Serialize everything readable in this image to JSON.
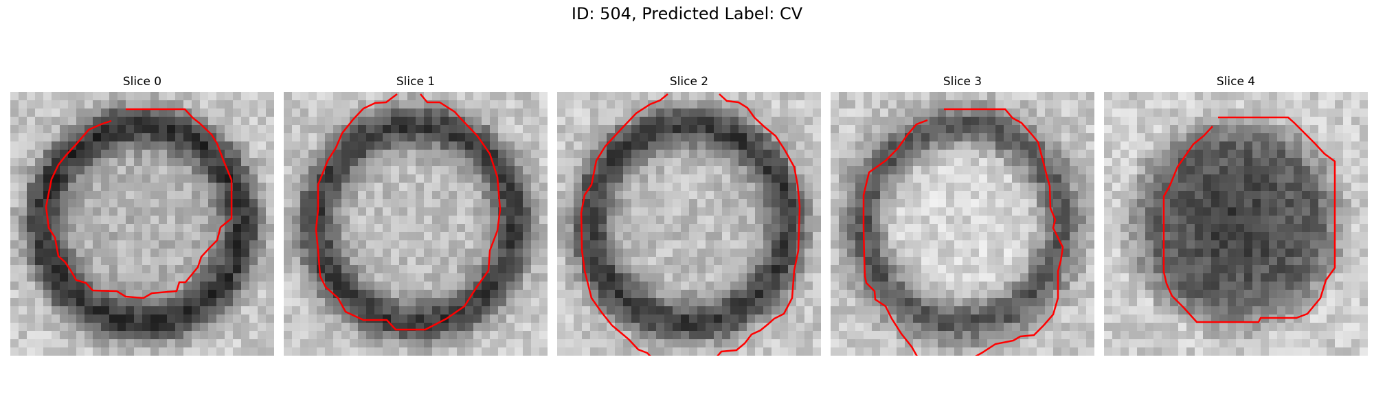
{
  "figure": {
    "title": "ID: 504, Predicted Label: CV"
  },
  "colors": {
    "contour": "#ff0000",
    "background": "#ffffff"
  },
  "slices": [
    {
      "label": "Slice 0",
      "pattern": "ring",
      "contour_style": "partial-top-right"
    },
    {
      "label": "Slice 1",
      "pattern": "ring-light-center",
      "contour_style": "open-top"
    },
    {
      "label": "Slice 2",
      "pattern": "ring-light-center",
      "contour_style": "open-top-bottom"
    },
    {
      "label": "Slice 3",
      "pattern": "ring-bright-center",
      "contour_style": "closed"
    },
    {
      "label": "Slice 4",
      "pattern": "dark-disc",
      "contour_style": "closed"
    }
  ]
}
